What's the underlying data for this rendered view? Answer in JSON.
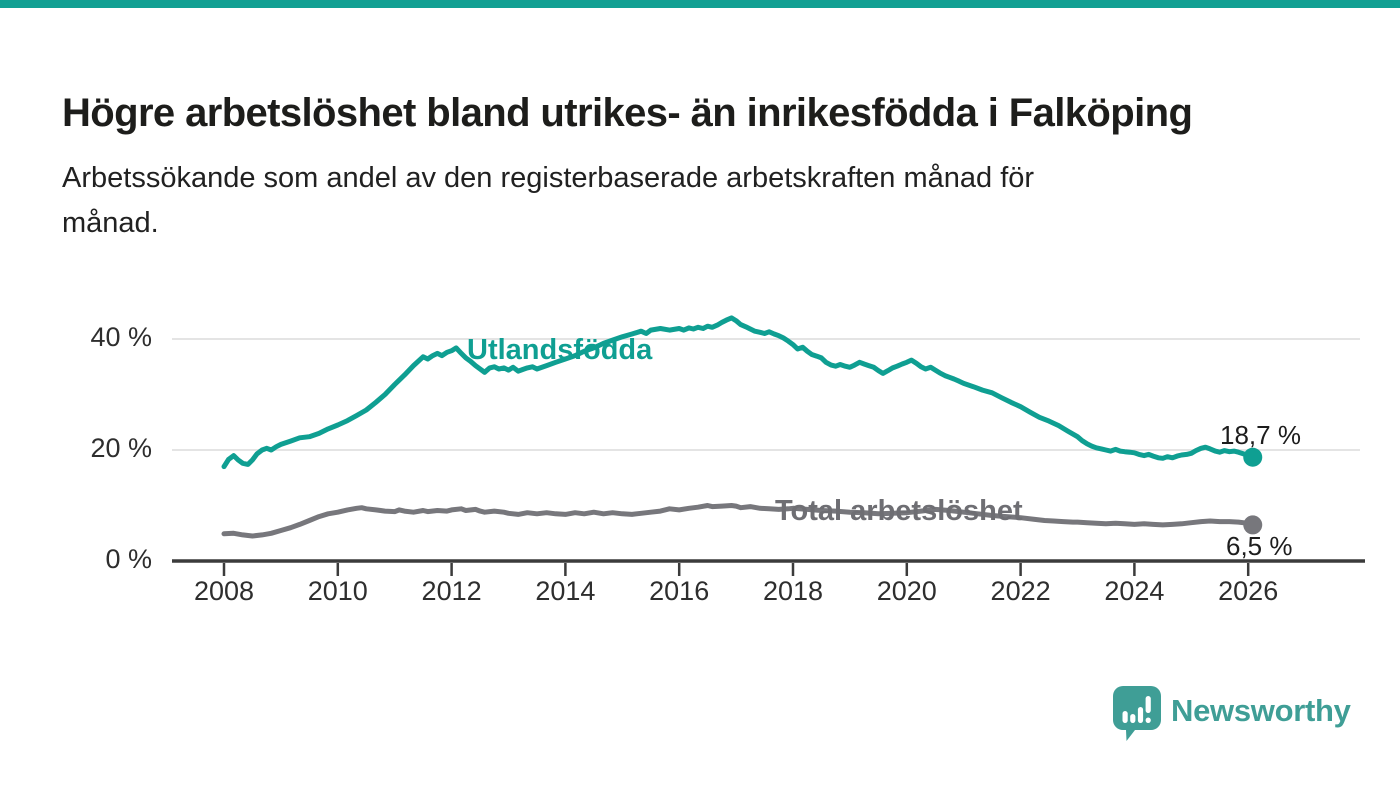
{
  "header": {
    "title": "Högre arbetslöshet bland utrikes- än inrikesfödda i Falköping",
    "subtitle_lines": [
      "Arbetssökande som andel av den registerbaserade arbetskraften månad för",
      "månad."
    ]
  },
  "footer": {
    "brand": "Newsworthy"
  },
  "colors": {
    "topbar": "#12a093",
    "teal_line": "#0f9f92",
    "gray_line": "#77777c",
    "grid": "#e4e4e4",
    "axis": "#3b3b3b",
    "logo_teal": "#3f9e96",
    "text_dark": "#1d1d1b"
  },
  "chart_data": {
    "type": "line",
    "title": "Högre arbetslöshet bland utrikes- än inrikesfödda i Falköping",
    "subtitle": "Arbetssökande som andel av den registerbaserade arbetskraften månad för månad.",
    "xlabel": "",
    "ylabel": "",
    "ylim": [
      0,
      45
    ],
    "xlim": [
      2007.1,
      2026.9
    ],
    "grid": "horizontal",
    "legend_position": "inline-labels",
    "x_ticks": [
      2008,
      2010,
      2012,
      2014,
      2016,
      2018,
      2020,
      2022,
      2024,
      2026
    ],
    "y_ticks": [
      {
        "value": 0,
        "label": "0 %"
      },
      {
        "value": 20,
        "label": "20 %"
      },
      {
        "value": 40,
        "label": "40 %"
      }
    ],
    "series": [
      {
        "name": "Utlandsfödda",
        "color": "#0f9f92",
        "end_label": "18,7 %",
        "end_value": 18.7,
        "points": [
          [
            2008.0,
            17.0
          ],
          [
            2008.08,
            18.3
          ],
          [
            2008.17,
            19.0
          ],
          [
            2008.25,
            18.2
          ],
          [
            2008.33,
            17.6
          ],
          [
            2008.42,
            17.4
          ],
          [
            2008.5,
            18.2
          ],
          [
            2008.58,
            19.3
          ],
          [
            2008.67,
            20.0
          ],
          [
            2008.75,
            20.3
          ],
          [
            2008.83,
            20.0
          ],
          [
            2008.92,
            20.6
          ],
          [
            2009.0,
            21.0
          ],
          [
            2009.17,
            21.6
          ],
          [
            2009.33,
            22.2
          ],
          [
            2009.5,
            22.4
          ],
          [
            2009.67,
            23.0
          ],
          [
            2009.83,
            23.8
          ],
          [
            2010.0,
            24.5
          ],
          [
            2010.17,
            25.3
          ],
          [
            2010.33,
            26.2
          ],
          [
            2010.5,
            27.2
          ],
          [
            2010.67,
            28.6
          ],
          [
            2010.83,
            30.0
          ],
          [
            2011.0,
            31.8
          ],
          [
            2011.17,
            33.5
          ],
          [
            2011.33,
            35.2
          ],
          [
            2011.5,
            36.8
          ],
          [
            2011.58,
            36.4
          ],
          [
            2011.67,
            37.0
          ],
          [
            2011.75,
            37.4
          ],
          [
            2011.83,
            37.0
          ],
          [
            2011.92,
            37.6
          ],
          [
            2012.0,
            37.9
          ],
          [
            2012.08,
            38.4
          ],
          [
            2012.17,
            37.4
          ],
          [
            2012.25,
            36.6
          ],
          [
            2012.33,
            36.0
          ],
          [
            2012.42,
            35.2
          ],
          [
            2012.5,
            34.6
          ],
          [
            2012.58,
            34.0
          ],
          [
            2012.67,
            34.8
          ],
          [
            2012.75,
            35.0
          ],
          [
            2012.83,
            34.6
          ],
          [
            2012.92,
            34.8
          ],
          [
            2013.0,
            34.4
          ],
          [
            2013.08,
            34.9
          ],
          [
            2013.17,
            34.2
          ],
          [
            2013.25,
            34.5
          ],
          [
            2013.33,
            34.8
          ],
          [
            2013.42,
            35.0
          ],
          [
            2013.5,
            34.6
          ],
          [
            2013.67,
            35.2
          ],
          [
            2013.83,
            35.8
          ],
          [
            2014.0,
            36.4
          ],
          [
            2014.17,
            37.0
          ],
          [
            2014.33,
            37.8
          ],
          [
            2014.5,
            38.4
          ],
          [
            2014.67,
            39.2
          ],
          [
            2014.83,
            39.8
          ],
          [
            2015.0,
            40.4
          ],
          [
            2015.17,
            40.9
          ],
          [
            2015.33,
            41.4
          ],
          [
            2015.42,
            41.0
          ],
          [
            2015.5,
            41.6
          ],
          [
            2015.67,
            41.9
          ],
          [
            2015.83,
            41.6
          ],
          [
            2016.0,
            41.9
          ],
          [
            2016.08,
            41.6
          ],
          [
            2016.17,
            42.0
          ],
          [
            2016.25,
            41.8
          ],
          [
            2016.33,
            42.1
          ],
          [
            2016.42,
            41.9
          ],
          [
            2016.5,
            42.3
          ],
          [
            2016.58,
            42.1
          ],
          [
            2016.67,
            42.5
          ],
          [
            2016.75,
            43.0
          ],
          [
            2016.83,
            43.4
          ],
          [
            2016.92,
            43.8
          ],
          [
            2017.0,
            43.3
          ],
          [
            2017.08,
            42.6
          ],
          [
            2017.17,
            42.2
          ],
          [
            2017.25,
            41.8
          ],
          [
            2017.33,
            41.4
          ],
          [
            2017.42,
            41.2
          ],
          [
            2017.5,
            41.0
          ],
          [
            2017.58,
            41.3
          ],
          [
            2017.67,
            40.9
          ],
          [
            2017.75,
            40.6
          ],
          [
            2017.83,
            40.2
          ],
          [
            2017.92,
            39.6
          ],
          [
            2018.0,
            39.0
          ],
          [
            2018.08,
            38.2
          ],
          [
            2018.17,
            38.5
          ],
          [
            2018.25,
            37.8
          ],
          [
            2018.33,
            37.2
          ],
          [
            2018.42,
            36.9
          ],
          [
            2018.5,
            36.6
          ],
          [
            2018.58,
            35.8
          ],
          [
            2018.67,
            35.3
          ],
          [
            2018.75,
            35.1
          ],
          [
            2018.83,
            35.4
          ],
          [
            2018.92,
            35.1
          ],
          [
            2019.0,
            34.9
          ],
          [
            2019.08,
            35.3
          ],
          [
            2019.17,
            35.8
          ],
          [
            2019.25,
            35.5
          ],
          [
            2019.33,
            35.2
          ],
          [
            2019.42,
            34.9
          ],
          [
            2019.5,
            34.3
          ],
          [
            2019.58,
            33.8
          ],
          [
            2019.67,
            34.3
          ],
          [
            2019.75,
            34.8
          ],
          [
            2019.83,
            35.1
          ],
          [
            2019.92,
            35.5
          ],
          [
            2020.0,
            35.8
          ],
          [
            2020.08,
            36.2
          ],
          [
            2020.17,
            35.6
          ],
          [
            2020.25,
            35.0
          ],
          [
            2020.33,
            34.6
          ],
          [
            2020.42,
            34.9
          ],
          [
            2020.5,
            34.4
          ],
          [
            2020.58,
            33.9
          ],
          [
            2020.67,
            33.4
          ],
          [
            2020.75,
            33.1
          ],
          [
            2020.83,
            32.8
          ],
          [
            2020.92,
            32.4
          ],
          [
            2021.0,
            32.0
          ],
          [
            2021.17,
            31.4
          ],
          [
            2021.33,
            30.8
          ],
          [
            2021.5,
            30.3
          ],
          [
            2021.67,
            29.4
          ],
          [
            2021.83,
            28.6
          ],
          [
            2022.0,
            27.8
          ],
          [
            2022.17,
            26.8
          ],
          [
            2022.33,
            25.9
          ],
          [
            2022.5,
            25.2
          ],
          [
            2022.67,
            24.4
          ],
          [
            2022.83,
            23.4
          ],
          [
            2023.0,
            22.4
          ],
          [
            2023.08,
            21.7
          ],
          [
            2023.17,
            21.1
          ],
          [
            2023.25,
            20.7
          ],
          [
            2023.33,
            20.4
          ],
          [
            2023.42,
            20.2
          ],
          [
            2023.5,
            20.0
          ],
          [
            2023.58,
            19.8
          ],
          [
            2023.67,
            20.1
          ],
          [
            2023.75,
            19.8
          ],
          [
            2023.83,
            19.7
          ],
          [
            2023.92,
            19.6
          ],
          [
            2024.0,
            19.5
          ],
          [
            2024.08,
            19.2
          ],
          [
            2024.17,
            19.0
          ],
          [
            2024.25,
            19.2
          ],
          [
            2024.33,
            18.9
          ],
          [
            2024.42,
            18.6
          ],
          [
            2024.5,
            18.5
          ],
          [
            2024.58,
            18.8
          ],
          [
            2024.67,
            18.6
          ],
          [
            2024.75,
            18.9
          ],
          [
            2024.83,
            19.1
          ],
          [
            2024.92,
            19.2
          ],
          [
            2025.0,
            19.4
          ],
          [
            2025.08,
            19.9
          ],
          [
            2025.17,
            20.3
          ],
          [
            2025.25,
            20.5
          ],
          [
            2025.33,
            20.2
          ],
          [
            2025.42,
            19.8
          ],
          [
            2025.5,
            19.6
          ],
          [
            2025.58,
            19.9
          ],
          [
            2025.67,
            19.7
          ],
          [
            2025.75,
            19.8
          ],
          [
            2025.83,
            19.6
          ],
          [
            2025.92,
            19.3
          ],
          [
            2026.0,
            19.0
          ],
          [
            2026.08,
            18.7
          ]
        ]
      },
      {
        "name": "Total arbetslöshet",
        "color": "#77777c",
        "end_label": "6,5 %",
        "end_value": 6.5,
        "points": [
          [
            2008.0,
            4.9
          ],
          [
            2008.17,
            5.0
          ],
          [
            2008.33,
            4.7
          ],
          [
            2008.5,
            4.5
          ],
          [
            2008.67,
            4.7
          ],
          [
            2008.83,
            5.0
          ],
          [
            2009.0,
            5.5
          ],
          [
            2009.17,
            6.0
          ],
          [
            2009.33,
            6.6
          ],
          [
            2009.5,
            7.3
          ],
          [
            2009.67,
            8.0
          ],
          [
            2009.83,
            8.5
          ],
          [
            2010.0,
            8.8
          ],
          [
            2010.17,
            9.2
          ],
          [
            2010.33,
            9.5
          ],
          [
            2010.42,
            9.6
          ],
          [
            2010.5,
            9.4
          ],
          [
            2010.67,
            9.2
          ],
          [
            2010.83,
            9.0
          ],
          [
            2011.0,
            8.9
          ],
          [
            2011.08,
            9.2
          ],
          [
            2011.17,
            9.0
          ],
          [
            2011.33,
            8.8
          ],
          [
            2011.5,
            9.1
          ],
          [
            2011.58,
            8.9
          ],
          [
            2011.75,
            9.1
          ],
          [
            2011.92,
            9.0
          ],
          [
            2012.0,
            9.2
          ],
          [
            2012.17,
            9.4
          ],
          [
            2012.25,
            9.1
          ],
          [
            2012.42,
            9.3
          ],
          [
            2012.5,
            9.0
          ],
          [
            2012.58,
            8.8
          ],
          [
            2012.75,
            9.0
          ],
          [
            2012.92,
            8.8
          ],
          [
            2013.0,
            8.6
          ],
          [
            2013.17,
            8.4
          ],
          [
            2013.33,
            8.7
          ],
          [
            2013.5,
            8.5
          ],
          [
            2013.67,
            8.7
          ],
          [
            2013.83,
            8.5
          ],
          [
            2014.0,
            8.4
          ],
          [
            2014.17,
            8.7
          ],
          [
            2014.33,
            8.5
          ],
          [
            2014.5,
            8.8
          ],
          [
            2014.67,
            8.5
          ],
          [
            2014.83,
            8.7
          ],
          [
            2015.0,
            8.5
          ],
          [
            2015.17,
            8.4
          ],
          [
            2015.33,
            8.6
          ],
          [
            2015.5,
            8.8
          ],
          [
            2015.67,
            9.0
          ],
          [
            2015.83,
            9.4
          ],
          [
            2016.0,
            9.2
          ],
          [
            2016.17,
            9.5
          ],
          [
            2016.33,
            9.7
          ],
          [
            2016.5,
            10.0
          ],
          [
            2016.58,
            9.8
          ],
          [
            2016.75,
            9.9
          ],
          [
            2016.92,
            10.0
          ],
          [
            2017.0,
            9.9
          ],
          [
            2017.08,
            9.6
          ],
          [
            2017.25,
            9.8
          ],
          [
            2017.42,
            9.5
          ],
          [
            2017.58,
            9.4
          ],
          [
            2017.75,
            9.3
          ],
          [
            2017.92,
            9.4
          ],
          [
            2018.0,
            9.5
          ],
          [
            2018.25,
            9.3
          ],
          [
            2018.5,
            9.1
          ],
          [
            2018.75,
            9.0
          ],
          [
            2019.0,
            8.8
          ],
          [
            2019.25,
            8.7
          ],
          [
            2019.5,
            8.5
          ],
          [
            2019.75,
            8.6
          ],
          [
            2020.0,
            8.7
          ],
          [
            2020.25,
            9.0
          ],
          [
            2020.5,
            9.3
          ],
          [
            2020.75,
            9.1
          ],
          [
            2021.0,
            8.8
          ],
          [
            2021.25,
            8.5
          ],
          [
            2021.5,
            8.2
          ],
          [
            2021.75,
            8.0
          ],
          [
            2022.0,
            7.8
          ],
          [
            2022.25,
            7.5
          ],
          [
            2022.42,
            7.3
          ],
          [
            2022.58,
            7.2
          ],
          [
            2022.75,
            7.1
          ],
          [
            2022.92,
            7.0
          ],
          [
            2023.0,
            7.0
          ],
          [
            2023.17,
            6.9
          ],
          [
            2023.33,
            6.8
          ],
          [
            2023.5,
            6.7
          ],
          [
            2023.67,
            6.8
          ],
          [
            2023.83,
            6.7
          ],
          [
            2024.0,
            6.6
          ],
          [
            2024.17,
            6.7
          ],
          [
            2024.33,
            6.6
          ],
          [
            2024.5,
            6.5
          ],
          [
            2024.67,
            6.6
          ],
          [
            2024.83,
            6.7
          ],
          [
            2025.0,
            6.9
          ],
          [
            2025.17,
            7.1
          ],
          [
            2025.33,
            7.2
          ],
          [
            2025.5,
            7.1
          ],
          [
            2025.67,
            7.1
          ],
          [
            2025.83,
            7.0
          ],
          [
            2026.0,
            6.8
          ],
          [
            2026.08,
            6.5
          ]
        ]
      }
    ]
  }
}
